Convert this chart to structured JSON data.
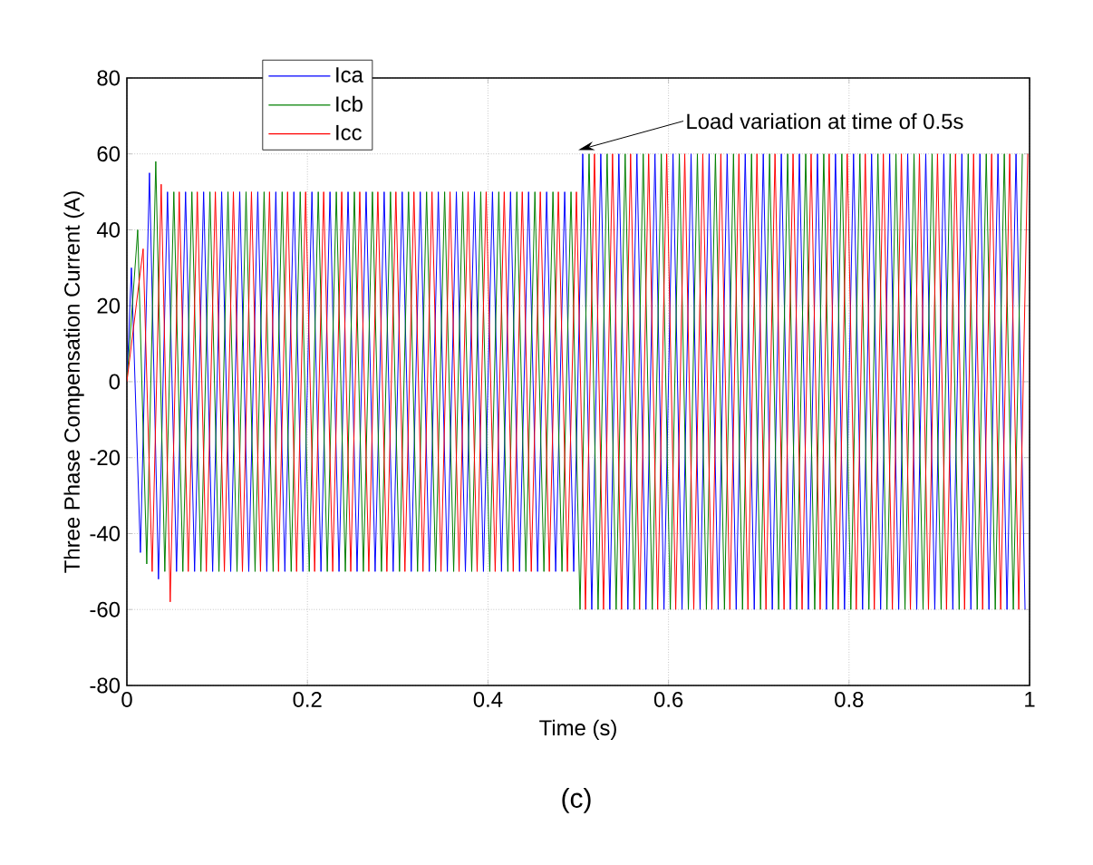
{
  "chart_data": {
    "type": "line",
    "xlabel": "Time (s)",
    "ylabel": "Three Phase Compensation Current (A)",
    "xlim": [
      0,
      1
    ],
    "xticks": [
      0,
      0.2,
      0.4,
      0.6,
      0.8,
      1
    ],
    "ylim": [
      -80,
      80
    ],
    "yticks": [
      -80,
      -60,
      -40,
      -20,
      0,
      20,
      40,
      60,
      80
    ],
    "grid": true,
    "legend": "top left",
    "line_style": "solid",
    "marker": "none",
    "annotations": [
      {
        "text": "Load variation at time of 0.5s",
        "x": 0.5,
        "y": 61
      },
      "(c)"
    ],
    "series": [
      {
        "name": "Ica",
        "color": "#0000ff",
        "x": [
          0,
          0.005,
          0.015,
          0.025,
          0.035,
          0.045,
          0.055,
          0.065,
          0.075,
          0.085,
          0.095,
          0.105,
          0.115,
          0.125,
          0.135,
          0.145,
          0.155,
          0.165,
          0.175,
          0.185,
          0.195,
          0.205,
          0.215,
          0.225,
          0.235,
          0.245,
          0.255,
          0.265,
          0.275,
          0.285,
          0.295,
          0.305,
          0.315,
          0.325,
          0.335,
          0.345,
          0.355,
          0.365,
          0.375,
          0.385,
          0.395,
          0.405,
          0.415,
          0.425,
          0.435,
          0.445,
          0.455,
          0.465,
          0.475,
          0.485,
          0.495,
          0.505,
          0.515,
          0.525,
          0.535,
          0.545,
          0.555,
          0.565,
          0.575,
          0.585,
          0.595,
          0.605,
          0.615,
          0.625,
          0.635,
          0.645,
          0.655,
          0.665,
          0.675,
          0.685,
          0.695,
          0.705,
          0.715,
          0.725,
          0.735,
          0.745,
          0.755,
          0.765,
          0.775,
          0.785,
          0.795,
          0.805,
          0.815,
          0.825,
          0.835,
          0.845,
          0.855,
          0.865,
          0.875,
          0.885,
          0.895,
          0.905,
          0.915,
          0.925,
          0.935,
          0.945,
          0.955,
          0.965,
          0.975,
          0.985,
          0.995
        ],
        "values": [
          0,
          30,
          -45,
          55,
          -52,
          50,
          -50,
          50,
          -50,
          50,
          -50,
          50,
          -50,
          50,
          -50,
          50,
          -50,
          50,
          -50,
          50,
          -50,
          50,
          -50,
          50,
          -50,
          50,
          -50,
          50,
          -50,
          50,
          -50,
          50,
          -50,
          50,
          -50,
          50,
          -50,
          50,
          -50,
          50,
          -50,
          50,
          -50,
          50,
          -50,
          50,
          -50,
          50,
          -50,
          50,
          -50,
          60,
          -60,
          60,
          -60,
          60,
          -60,
          60,
          -60,
          60,
          -60,
          60,
          -60,
          60,
          -60,
          60,
          -60,
          60,
          -60,
          60,
          -60,
          60,
          -60,
          60,
          -60,
          60,
          -60,
          60,
          -60,
          60,
          -60,
          60,
          -60,
          60,
          -60,
          60,
          -60,
          60,
          -60,
          60,
          -60,
          60,
          -60,
          60,
          -60,
          60,
          -60,
          60,
          -60,
          60,
          -60
        ]
      },
      {
        "name": "Icb",
        "color": "#008000",
        "x": [
          0,
          0.012,
          0.022,
          0.032,
          0.042,
          0.052,
          0.062,
          0.072,
          0.082,
          0.092,
          0.102,
          0.112,
          0.122,
          0.132,
          0.142,
          0.152,
          0.162,
          0.172,
          0.182,
          0.192,
          0.202,
          0.212,
          0.222,
          0.232,
          0.242,
          0.252,
          0.262,
          0.272,
          0.282,
          0.292,
          0.302,
          0.312,
          0.322,
          0.332,
          0.342,
          0.352,
          0.362,
          0.372,
          0.382,
          0.392,
          0.402,
          0.412,
          0.422,
          0.432,
          0.442,
          0.452,
          0.462,
          0.472,
          0.482,
          0.492,
          0.502,
          0.512,
          0.522,
          0.532,
          0.542,
          0.552,
          0.562,
          0.572,
          0.582,
          0.592,
          0.602,
          0.612,
          0.622,
          0.632,
          0.642,
          0.652,
          0.662,
          0.672,
          0.682,
          0.692,
          0.702,
          0.712,
          0.722,
          0.732,
          0.742,
          0.752,
          0.762,
          0.772,
          0.782,
          0.792,
          0.802,
          0.812,
          0.822,
          0.832,
          0.842,
          0.852,
          0.862,
          0.872,
          0.882,
          0.892,
          0.902,
          0.912,
          0.922,
          0.932,
          0.942,
          0.952,
          0.962,
          0.972,
          0.982,
          0.992
        ],
        "values": [
          0,
          40,
          -48,
          58,
          -50,
          50,
          -50,
          50,
          -50,
          50,
          -50,
          50,
          -50,
          50,
          -50,
          50,
          -50,
          50,
          -50,
          50,
          -50,
          50,
          -50,
          50,
          -50,
          50,
          -50,
          50,
          -50,
          50,
          -50,
          50,
          -50,
          50,
          -50,
          50,
          -50,
          50,
          -50,
          50,
          -50,
          50,
          -50,
          50,
          -50,
          50,
          -50,
          50,
          -50,
          50,
          -60,
          60,
          -60,
          60,
          -60,
          60,
          -60,
          60,
          -60,
          60,
          -60,
          60,
          -60,
          60,
          -60,
          60,
          -60,
          60,
          -60,
          60,
          -60,
          60,
          -60,
          60,
          -60,
          60,
          -60,
          60,
          -60,
          60,
          -60,
          60,
          -60,
          60,
          -60,
          60,
          -60,
          60,
          -60,
          60,
          -60,
          60,
          -60,
          60,
          -60,
          60,
          -60,
          60,
          -60,
          60
        ]
      },
      {
        "name": "Icc",
        "color": "#ff0000",
        "x": [
          0,
          0.018,
          0.028,
          0.038,
          0.048,
          0.058,
          0.068,
          0.078,
          0.088,
          0.098,
          0.108,
          0.118,
          0.128,
          0.138,
          0.148,
          0.158,
          0.168,
          0.178,
          0.188,
          0.198,
          0.208,
          0.218,
          0.228,
          0.238,
          0.248,
          0.258,
          0.268,
          0.278,
          0.288,
          0.298,
          0.308,
          0.318,
          0.328,
          0.338,
          0.348,
          0.358,
          0.368,
          0.378,
          0.388,
          0.398,
          0.408,
          0.418,
          0.428,
          0.438,
          0.448,
          0.458,
          0.468,
          0.478,
          0.488,
          0.498,
          0.508,
          0.518,
          0.528,
          0.538,
          0.548,
          0.558,
          0.568,
          0.578,
          0.588,
          0.598,
          0.608,
          0.618,
          0.628,
          0.638,
          0.648,
          0.658,
          0.668,
          0.678,
          0.688,
          0.698,
          0.708,
          0.718,
          0.728,
          0.738,
          0.748,
          0.758,
          0.768,
          0.778,
          0.788,
          0.798,
          0.808,
          0.818,
          0.828,
          0.838,
          0.848,
          0.858,
          0.868,
          0.878,
          0.888,
          0.898,
          0.908,
          0.918,
          0.928,
          0.938,
          0.948,
          0.958,
          0.968,
          0.978,
          0.988,
          0.998
        ],
        "values": [
          0,
          35,
          -50,
          52,
          -58,
          50,
          -50,
          50,
          -50,
          50,
          -50,
          50,
          -50,
          50,
          -50,
          50,
          -50,
          50,
          -50,
          50,
          -50,
          50,
          -50,
          50,
          -50,
          50,
          -50,
          50,
          -50,
          50,
          -50,
          50,
          -50,
          50,
          -50,
          50,
          -50,
          50,
          -50,
          50,
          -50,
          50,
          -50,
          50,
          -50,
          50,
          -50,
          50,
          -50,
          50,
          -60,
          60,
          -60,
          60,
          -60,
          60,
          -60,
          60,
          -60,
          60,
          -60,
          60,
          -60,
          60,
          -60,
          60,
          -60,
          60,
          -60,
          60,
          -60,
          60,
          -60,
          60,
          -60,
          60,
          -60,
          60,
          -60,
          60,
          -60,
          60,
          -60,
          60,
          -60,
          60,
          -60,
          60,
          -60,
          60,
          -60,
          60,
          -60,
          60,
          -60,
          60,
          -60,
          60,
          -60,
          60
        ]
      }
    ]
  }
}
